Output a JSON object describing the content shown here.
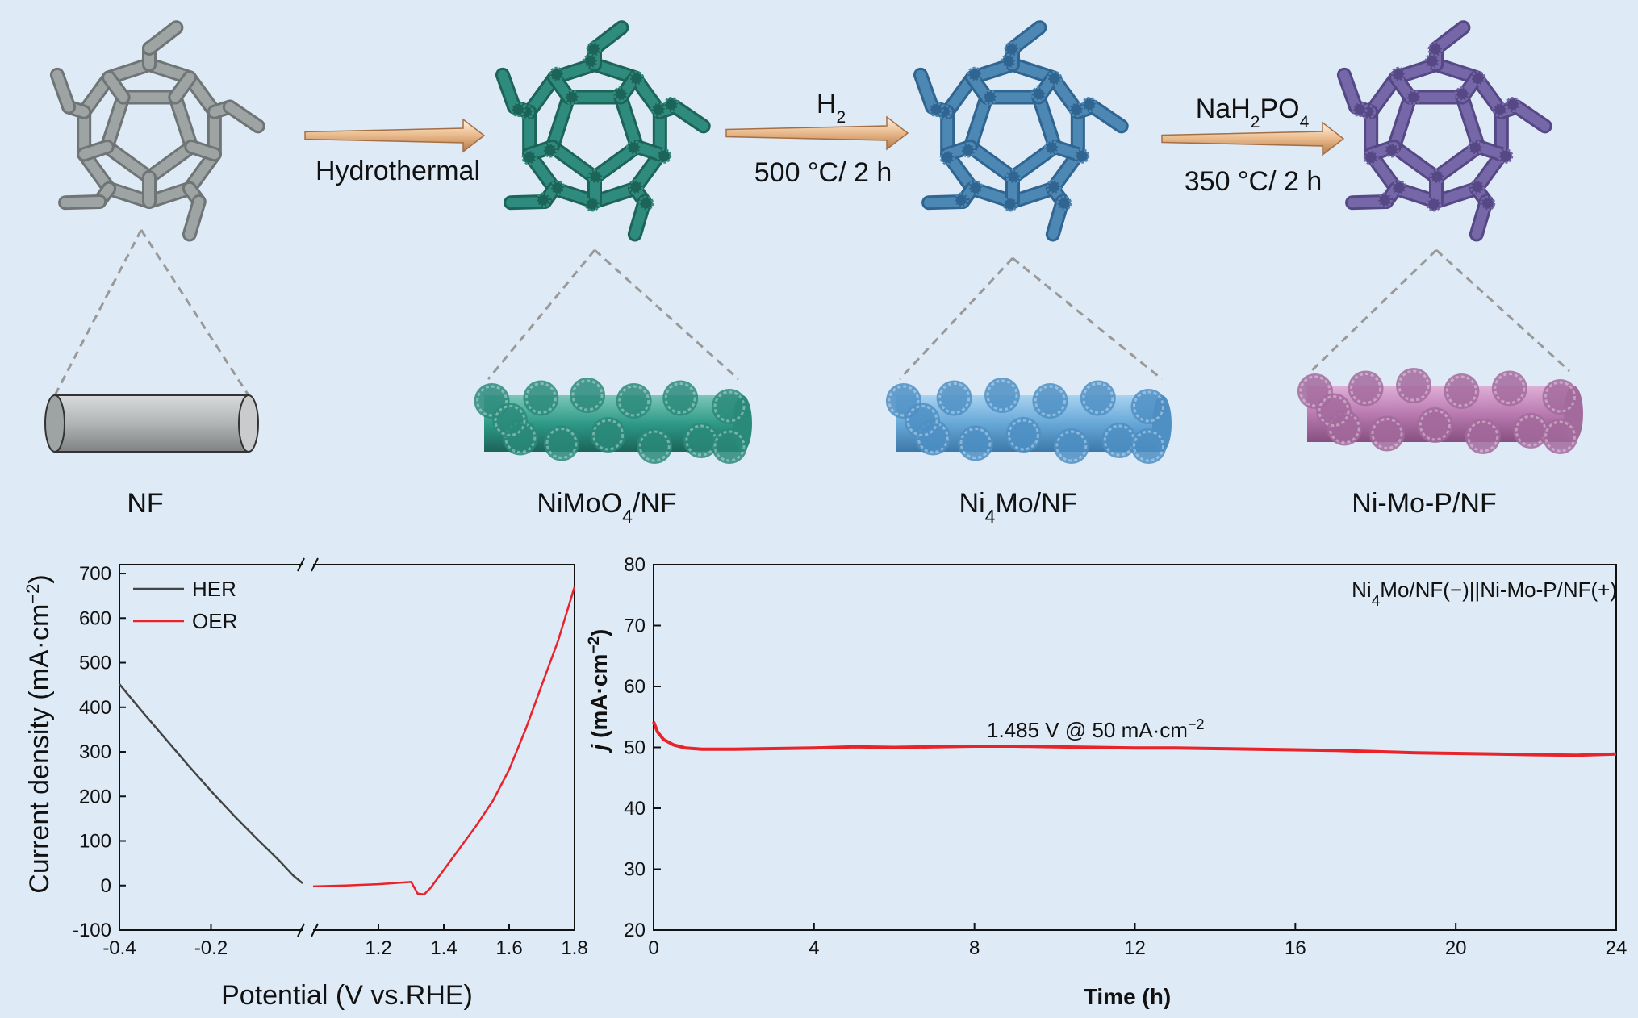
{
  "scheme": {
    "stages": [
      {
        "id": "nf",
        "label": "NF",
        "color": "#9ea3a4",
        "dark": "#6f7475"
      },
      {
        "id": "nimoo4",
        "label_main": "NiMoO",
        "label_sub": "4",
        "label_tail": "/NF",
        "color": "#2e8b7d",
        "dark": "#1d6458"
      },
      {
        "id": "ni4mo",
        "label_main": "Ni",
        "label_sub": "4",
        "label_tail": "Mo/NF",
        "color": "#4d87b4",
        "dark": "#2f6590"
      },
      {
        "id": "nimop",
        "label": "Ni-Mo-P/NF",
        "color": "#7567a8",
        "dark": "#554884",
        "rod": "#a86ca6"
      }
    ],
    "arrows": [
      {
        "id": "a1",
        "above": "",
        "below": "Hydrothermal"
      },
      {
        "id": "a2",
        "above_main": "H",
        "above_sub": "2",
        "below": "500 °C/ 2 h"
      },
      {
        "id": "a3",
        "above_main": "NaH",
        "above_sub": "2",
        "above_tail": "PO",
        "above_sub2": "4",
        "below": "350 °C/ 2 h"
      }
    ]
  },
  "chart_data": [
    {
      "type": "line",
      "xlabel": "Potential (V vs.RHE)",
      "ylabel_main": "Current density (mA·cm",
      "ylabel_sup": "−2",
      "ylabel_tail": ")",
      "broken_axis": true,
      "x_segments": [
        [
          -0.4,
          0.0
        ],
        [
          1.0,
          1.8
        ]
      ],
      "x_ticks": [
        "-0.4",
        "-0.2",
        "1.2",
        "1.4",
        "1.6",
        "1.8"
      ],
      "x_tick_values": [
        -0.4,
        -0.2,
        1.2,
        1.4,
        1.6,
        1.8
      ],
      "ylim": [
        -100,
        720
      ],
      "y_ticks": [
        "-100",
        "0",
        "100",
        "200",
        "300",
        "400",
        "500",
        "600",
        "700"
      ],
      "legend_position": "top-left",
      "series": [
        {
          "name": "HER",
          "color": "#444444",
          "x": [
            -0.4,
            -0.35,
            -0.3,
            -0.25,
            -0.2,
            -0.15,
            -0.1,
            -0.05,
            -0.02,
            0.0
          ],
          "y": [
            452,
            390,
            330,
            270,
            212,
            157,
            105,
            55,
            22,
            5
          ]
        },
        {
          "name": "OER",
          "color": "#e8232a",
          "x": [
            1.0,
            1.1,
            1.2,
            1.28,
            1.3,
            1.32,
            1.34,
            1.36,
            1.4,
            1.45,
            1.5,
            1.55,
            1.6,
            1.65,
            1.7,
            1.75,
            1.8
          ],
          "y": [
            -2,
            0,
            3,
            7,
            8,
            -18,
            -20,
            -5,
            35,
            85,
            135,
            190,
            260,
            350,
            450,
            550,
            670
          ]
        }
      ]
    },
    {
      "type": "line",
      "xlabel": "Time (h)",
      "ylabel_main": "j",
      "ylabel_tail": " (mA·cm",
      "ylabel_sup": "−2",
      "ylabel_end": ")",
      "xlim": [
        0,
        24
      ],
      "ylim": [
        20,
        80
      ],
      "x_ticks": [
        "0",
        "4",
        "8",
        "12",
        "16",
        "20",
        "24"
      ],
      "y_ticks": [
        "20",
        "30",
        "40",
        "50",
        "60",
        "70",
        "80"
      ],
      "legend_main": "Ni",
      "legend_sub": "4",
      "legend_tail": "Mo/NF(−)||Ni-Mo-P/NF(+)",
      "annotation_main": "1.485 V  @ 50 mA·cm",
      "annotation_sup": "−2",
      "series": [
        {
          "name": "",
          "color": "#e8232a",
          "x": [
            0,
            0.1,
            0.25,
            0.5,
            0.8,
            1.2,
            2,
            3,
            4,
            5,
            6,
            7,
            8,
            9,
            10,
            11,
            12,
            13,
            14,
            15,
            16,
            17,
            18,
            19,
            20,
            21,
            22,
            23,
            24
          ],
          "y": [
            54.2,
            52.5,
            51.3,
            50.4,
            49.9,
            49.7,
            49.7,
            49.8,
            49.9,
            50.1,
            50.0,
            50.1,
            50.2,
            50.2,
            50.1,
            50.0,
            49.9,
            49.9,
            49.8,
            49.7,
            49.6,
            49.5,
            49.3,
            49.1,
            49.0,
            48.9,
            48.8,
            48.7,
            48.9
          ]
        }
      ]
    }
  ]
}
